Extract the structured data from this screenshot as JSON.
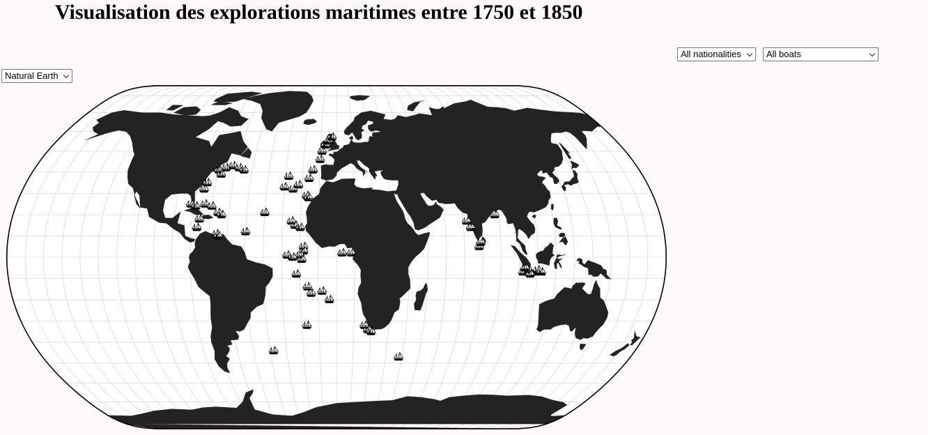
{
  "header": {
    "title": "Visualisation des explorations maritimes entre 1750 et 1850"
  },
  "filters": {
    "nationality": {
      "selected": "All nationalities"
    },
    "boat": {
      "selected": "All boats"
    },
    "projection": {
      "selected": "Natural Earth"
    }
  },
  "map": {
    "projection": "Natural Earth",
    "graticule_step_deg": 10,
    "colors": {
      "land": "#232323",
      "ocean": "#ffffff",
      "graticule": "#d0d0d0",
      "outline": "#000000",
      "marker": "#000000"
    },
    "marker_icon": "sailing-ship-icon",
    "ship_markers": [
      {
        "lon": -70,
        "lat": 41
      },
      {
        "lon": -66,
        "lat": 42
      },
      {
        "lon": -62,
        "lat": 43
      },
      {
        "lon": -58,
        "lat": 42
      },
      {
        "lon": -55,
        "lat": 41
      },
      {
        "lon": -68,
        "lat": 39
      },
      {
        "lon": -75,
        "lat": 35
      },
      {
        "lon": -76,
        "lat": 32
      },
      {
        "lon": -82,
        "lat": 25
      },
      {
        "lon": -79,
        "lat": 24
      },
      {
        "lon": -74,
        "lat": 25
      },
      {
        "lon": -70,
        "lat": 24
      },
      {
        "lon": -66,
        "lat": 21
      },
      {
        "lon": -64,
        "lat": 20
      },
      {
        "lon": -76,
        "lat": 18
      },
      {
        "lon": -77,
        "lat": 14
      },
      {
        "lon": -66,
        "lat": 11
      },
      {
        "lon": -65,
        "lat": 10
      },
      {
        "lon": -50,
        "lat": 12
      },
      {
        "lon": -40,
        "lat": 21
      },
      {
        "lon": -28,
        "lat": 38
      },
      {
        "lon": -30,
        "lat": 33
      },
      {
        "lon": -25,
        "lat": 32
      },
      {
        "lon": -22,
        "lat": 34
      },
      {
        "lon": -16,
        "lat": 37
      },
      {
        "lon": -14,
        "lat": 41
      },
      {
        "lon": -10,
        "lat": 46
      },
      {
        "lon": -9,
        "lat": 50
      },
      {
        "lon": -7,
        "lat": 53
      },
      {
        "lon": -5,
        "lat": 55
      },
      {
        "lon": -3,
        "lat": 57
      },
      {
        "lon": -17,
        "lat": 29
      },
      {
        "lon": -16,
        "lat": 28
      },
      {
        "lon": -25,
        "lat": 17
      },
      {
        "lon": -23,
        "lat": 15
      },
      {
        "lon": -20,
        "lat": 14
      },
      {
        "lon": -18,
        "lat": 5
      },
      {
        "lon": -18,
        "lat": 3
      },
      {
        "lon": -20,
        "lat": 1
      },
      {
        "lon": -27,
        "lat": 1
      },
      {
        "lon": -24,
        "lat": 0
      },
      {
        "lon": -19,
        "lat": -1
      },
      {
        "lon": -22,
        "lat": -8
      },
      {
        "lon": -16,
        "lat": -14
      },
      {
        "lon": -14,
        "lat": -17
      },
      {
        "lon": -8,
        "lat": -16
      },
      {
        "lon": -4,
        "lat": -20
      },
      {
        "lon": 3,
        "lat": 2
      },
      {
        "lon": 8,
        "lat": 2
      },
      {
        "lon": -17,
        "lat": -32
      },
      {
        "lon": -38,
        "lat": -44
      },
      {
        "lon": 16,
        "lat": -32
      },
      {
        "lon": 18,
        "lat": -34
      },
      {
        "lon": 20,
        "lat": -35
      },
      {
        "lon": 38,
        "lat": -47
      },
      {
        "lon": 72,
        "lat": 17
      },
      {
        "lon": 74,
        "lat": 14
      },
      {
        "lon": 78,
        "lat": 5
      },
      {
        "lon": 79,
        "lat": 7
      },
      {
        "lon": 88,
        "lat": 20
      },
      {
        "lon": 102,
        "lat": -7
      },
      {
        "lon": 105,
        "lat": -6
      },
      {
        "lon": 108,
        "lat": -7
      },
      {
        "lon": 110,
        "lat": -6
      },
      {
        "lon": 112,
        "lat": -7
      },
      {
        "lon": 106,
        "lat": -8
      },
      {
        "lon": 103,
        "lat": -5
      }
    ]
  }
}
